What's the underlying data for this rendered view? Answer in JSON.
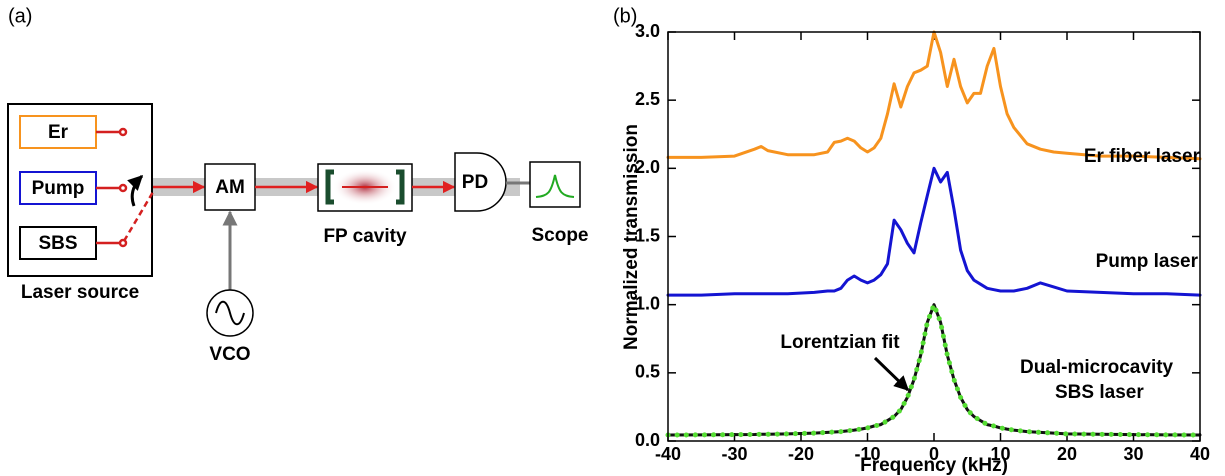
{
  "diagram": {
    "panel_label": "(a)",
    "sources": [
      "Er",
      "Pump",
      "SBS"
    ],
    "source_box": "Laser source",
    "modulator": "AM",
    "oscillator": "VCO",
    "cavity": "FP cavity",
    "detector": "PD",
    "scope": "Scope"
  },
  "chart_data": {
    "type": "line",
    "panel_label": "(b)",
    "x_label": "Frequency (kHz)",
    "y_label": "Normalized transmission",
    "xlim": [
      -40,
      40
    ],
    "ylim": [
      0,
      3
    ],
    "xticks": [
      -40,
      -30,
      -20,
      -10,
      0,
      10,
      20,
      30,
      40
    ],
    "yticks": [
      {
        "value": 0,
        "label": "0.0"
      },
      0.5,
      {
        "value": 1,
        "label": "1.0"
      },
      1.5,
      {
        "value": 2,
        "label": "2.0"
      },
      2.5,
      {
        "value": 3,
        "label": "3.0"
      }
    ],
    "x": [
      -40,
      -35,
      -30,
      -27,
      -26,
      -25,
      -22,
      -18,
      -16,
      -15,
      -14,
      -13,
      -12,
      -11,
      -10,
      -9,
      -8,
      -7,
      -6,
      -5,
      -4,
      -3,
      -2,
      -1,
      0,
      1,
      2,
      3,
      4,
      5,
      6,
      7,
      8,
      9,
      10,
      11,
      12,
      14,
      16,
      18,
      20,
      25,
      30,
      35,
      40
    ],
    "series": [
      {
        "name": "Er fiber laser",
        "color": "#f7931e",
        "style": "solid",
        "values": [
          2.08,
          2.08,
          2.09,
          2.14,
          2.16,
          2.13,
          2.1,
          2.1,
          2.12,
          2.19,
          2.2,
          2.22,
          2.2,
          2.15,
          2.12,
          2.15,
          2.22,
          2.4,
          2.62,
          2.45,
          2.6,
          2.7,
          2.72,
          2.75,
          3.0,
          2.85,
          2.6,
          2.8,
          2.6,
          2.48,
          2.55,
          2.55,
          2.75,
          2.88,
          2.6,
          2.4,
          2.3,
          2.18,
          2.14,
          2.12,
          2.11,
          2.09,
          2.09,
          2.08,
          2.07
        ]
      },
      {
        "name": "Pump laser",
        "color": "#1414d2",
        "style": "solid",
        "values": [
          1.07,
          1.07,
          1.08,
          1.08,
          1.08,
          1.08,
          1.08,
          1.09,
          1.1,
          1.1,
          1.12,
          1.18,
          1.21,
          1.18,
          1.16,
          1.18,
          1.22,
          1.3,
          1.62,
          1.55,
          1.45,
          1.38,
          1.6,
          1.8,
          2.0,
          1.9,
          1.97,
          1.7,
          1.4,
          1.25,
          1.18,
          1.15,
          1.12,
          1.11,
          1.1,
          1.1,
          1.1,
          1.12,
          1.16,
          1.13,
          1.1,
          1.09,
          1.08,
          1.08,
          1.07
        ]
      },
      {
        "name": "Lorentzian fit",
        "color": "#111111",
        "style": "solid",
        "values": [
          0.044,
          0.045,
          0.047,
          0.048,
          0.049,
          0.049,
          0.052,
          0.058,
          0.063,
          0.066,
          0.069,
          0.074,
          0.08,
          0.087,
          0.096,
          0.11,
          0.12,
          0.15,
          0.18,
          0.23,
          0.32,
          0.45,
          0.63,
          0.87,
          1.0,
          0.87,
          0.63,
          0.45,
          0.32,
          0.23,
          0.18,
          0.15,
          0.12,
          0.11,
          0.096,
          0.087,
          0.08,
          0.069,
          0.063,
          0.058,
          0.052,
          0.049,
          0.047,
          0.045,
          0.044
        ]
      },
      {
        "name_lines": [
          "Dual-microcavity",
          "SBS laser"
        ],
        "color": "#55dd33",
        "style": "dotted",
        "values": [
          0.044,
          0.045,
          0.047,
          0.048,
          0.049,
          0.049,
          0.052,
          0.058,
          0.063,
          0.066,
          0.069,
          0.074,
          0.08,
          0.087,
          0.096,
          0.11,
          0.12,
          0.15,
          0.18,
          0.23,
          0.32,
          0.45,
          0.63,
          0.87,
          1.0,
          0.87,
          0.63,
          0.45,
          0.32,
          0.23,
          0.18,
          0.15,
          0.12,
          0.11,
          0.096,
          0.087,
          0.08,
          0.069,
          0.063,
          0.058,
          0.052,
          0.049,
          0.047,
          0.045,
          0.044
        ]
      }
    ]
  }
}
